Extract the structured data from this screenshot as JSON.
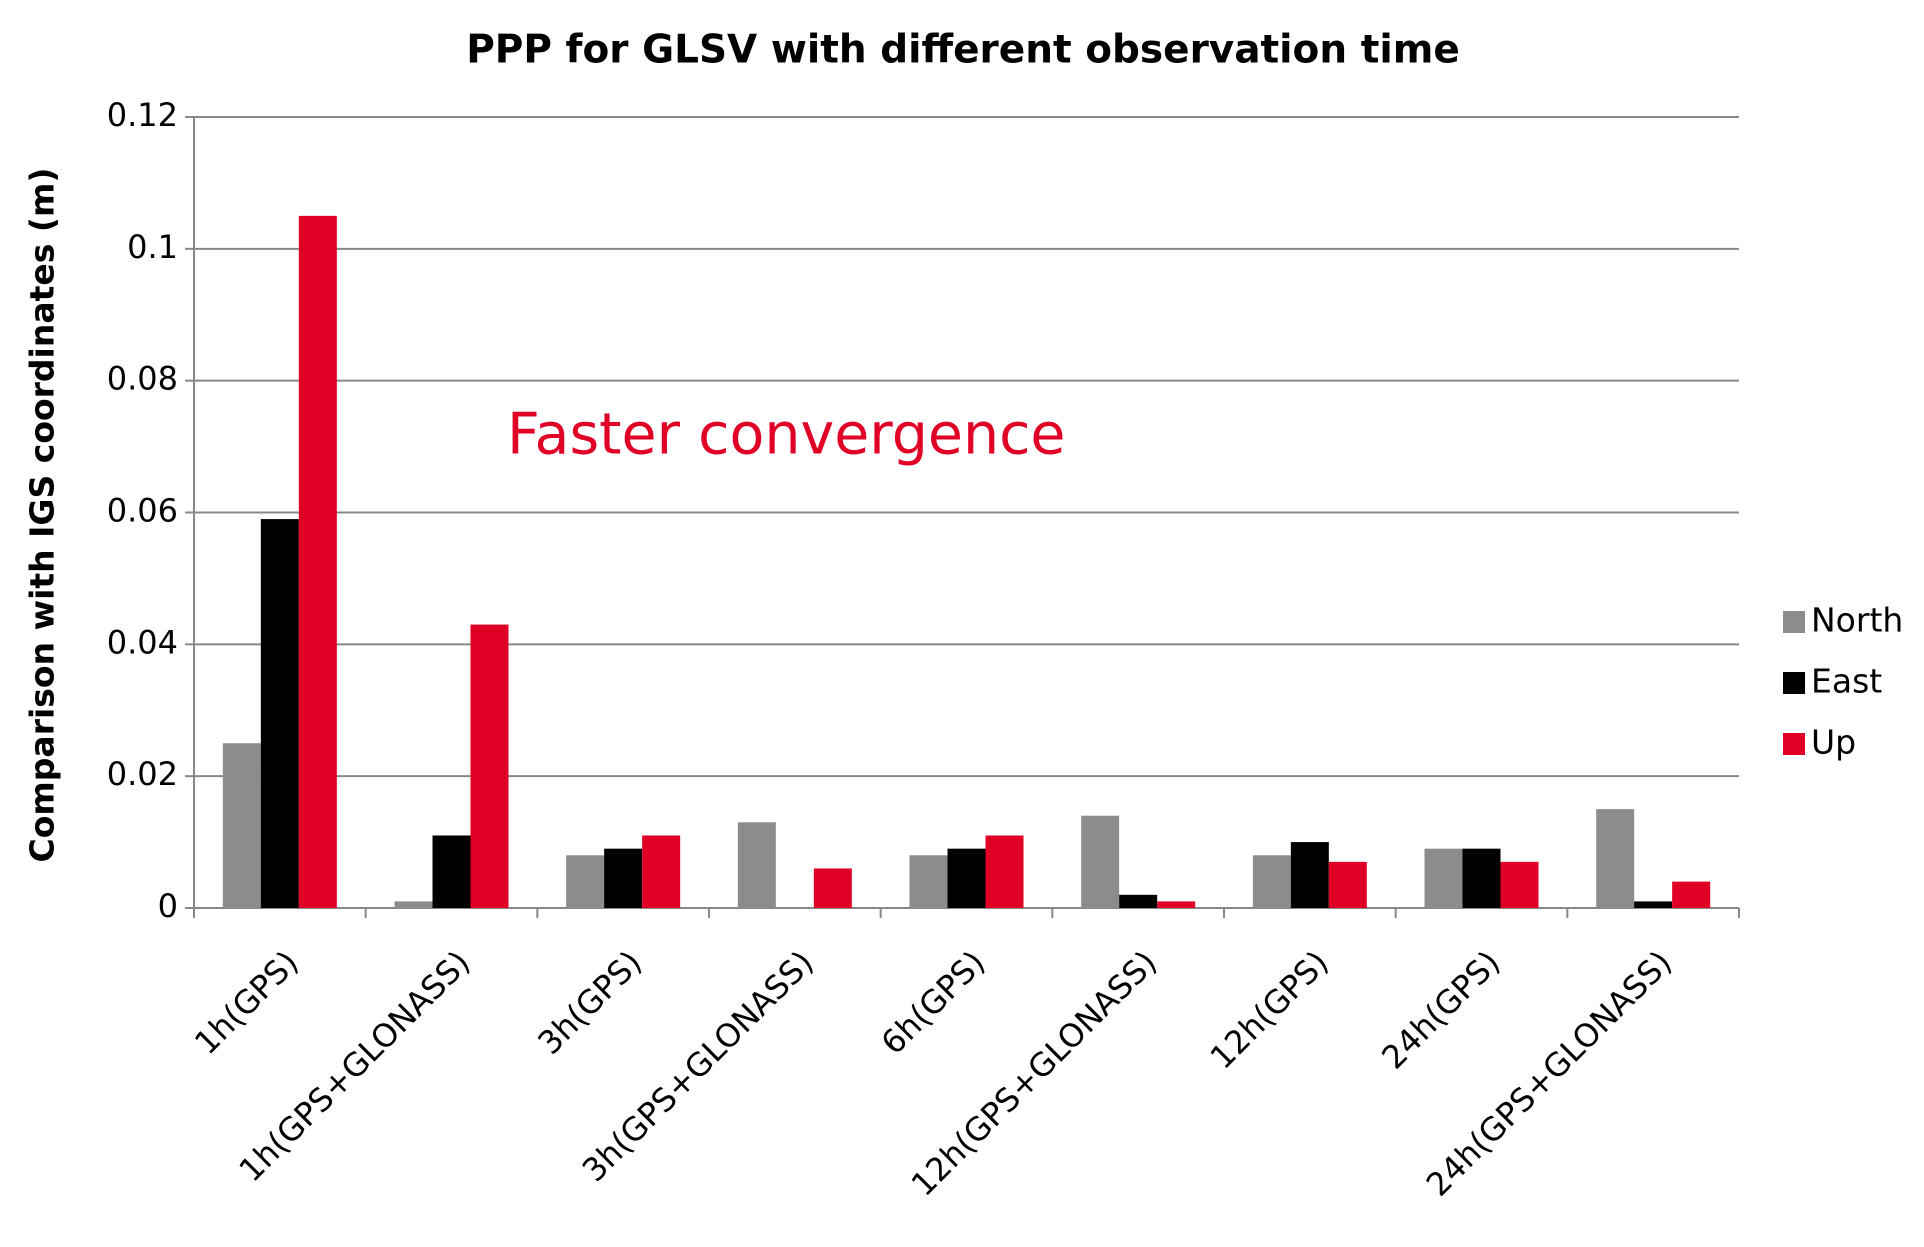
{
  "chart_data": {
    "type": "bar",
    "title": "PPP for GLSV with different observation time",
    "y_label": "Comparison with IGS coordinates (m)",
    "annotation": "Faster convergence",
    "categories": [
      "1h(GPS)",
      "1h(GPS+GLONASS)",
      "3h(GPS)",
      "3h(GPS+GLONASS)",
      "6h(GPS)",
      "12h(GPS+GLONASS)",
      "12h(GPS)",
      "24h(GPS)",
      "24h(GPS+GLONASS)"
    ],
    "series": [
      {
        "name": "North",
        "color": "#8c8c8c",
        "values": [
          0.025,
          0.001,
          0.008,
          0.013,
          0.008,
          0.014,
          0.008,
          0.009,
          0.015
        ]
      },
      {
        "name": "East",
        "color": "#000000",
        "values": [
          0.059,
          0.011,
          0.009,
          0,
          0.009,
          0.002,
          0.01,
          0.009,
          0.001
        ]
      },
      {
        "name": "Up",
        "color": "#e00026",
        "values": [
          0.105,
          0.043,
          0.011,
          0.006,
          0.011,
          0.001,
          0.007,
          0.007,
          0.004
        ]
      }
    ],
    "ylim": [
      0,
      0.12
    ],
    "yticks": [
      0,
      0.02,
      0.04,
      0.06,
      0.08,
      0.1,
      0.12
    ],
    "grid": true,
    "legend": "right"
  }
}
